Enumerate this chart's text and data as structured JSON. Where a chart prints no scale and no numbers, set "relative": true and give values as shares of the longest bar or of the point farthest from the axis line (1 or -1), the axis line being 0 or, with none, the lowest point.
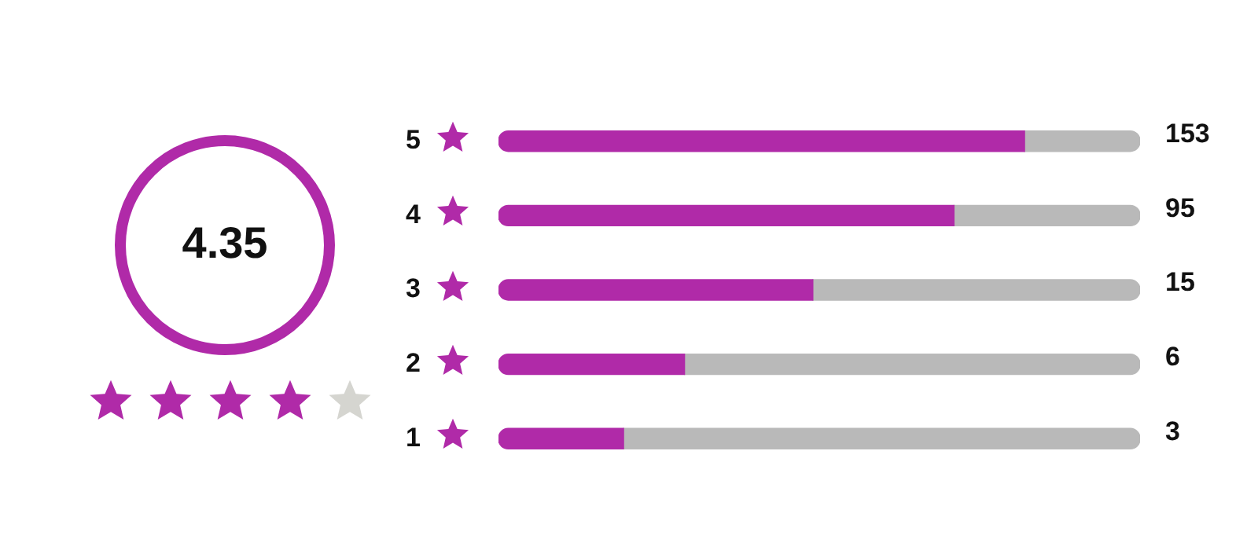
{
  "chart_data": {
    "type": "bar",
    "orientation": "horizontal",
    "stacked": true,
    "relative": true,
    "grid": false,
    "legend": false,
    "categories": [
      "5",
      "4",
      "3",
      "2",
      "1"
    ],
    "series": [
      {
        "color": "#b02aa8",
        "values": [
          0.82,
          0.71,
          0.49,
          0.29,
          0.195
        ]
      },
      {
        "color": "#b9b9b9",
        "values": [
          0.18,
          0.29,
          0.51,
          0.71,
          0.805
        ]
      }
    ],
    "annotations": [
      "4.35",
      "153",
      "95",
      "15",
      "6",
      "3"
    ]
  }
}
